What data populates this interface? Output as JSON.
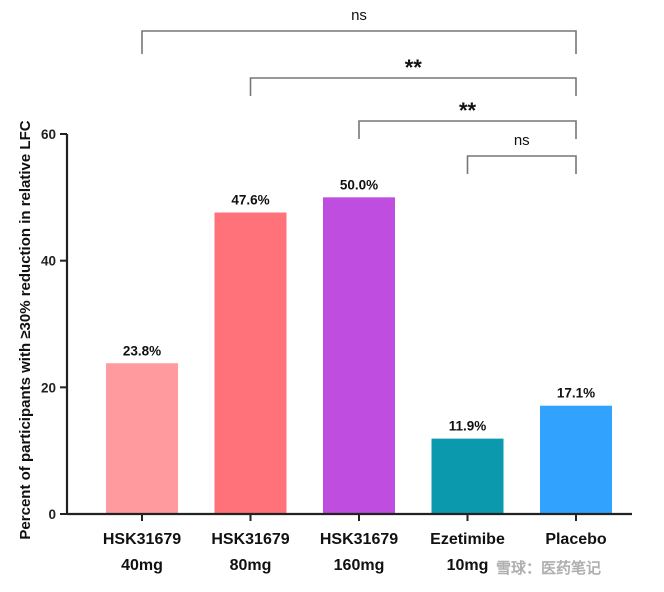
{
  "chart_data": {
    "type": "bar",
    "title": "",
    "ylabel": "Percent  of participants with ≥30% reduction in relative LFC",
    "xlabel": "",
    "ylim": [
      0,
      60
    ],
    "yticks": [
      "0",
      "20",
      "40",
      "60"
    ],
    "categories": [
      [
        "HSK31679",
        "40mg"
      ],
      [
        "HSK31679",
        "80mg"
      ],
      [
        "HSK31679",
        "160mg"
      ],
      [
        "Ezetimibe",
        "10mg"
      ],
      [
        "Placebo",
        ""
      ]
    ],
    "values": [
      23.8,
      47.6,
      50.0,
      11.9,
      17.1
    ],
    "value_labels": [
      "23.8%",
      "47.6%",
      "50.0%",
      "11.9%",
      "17.1%"
    ],
    "colors": [
      "#ff9a9e",
      "#ff727a",
      "#bf4ddf",
      "#0b9aad",
      "#32a2ff"
    ],
    "comparisons": [
      {
        "from": 0,
        "to": 4,
        "label": "ns"
      },
      {
        "from": 1,
        "to": 4,
        "label": "**"
      },
      {
        "from": 2,
        "to": 4,
        "label": "**"
      },
      {
        "from": 3,
        "to": 4,
        "label": "ns"
      }
    ]
  },
  "watermark": {
    "text": "雪球：医药笔记"
  }
}
